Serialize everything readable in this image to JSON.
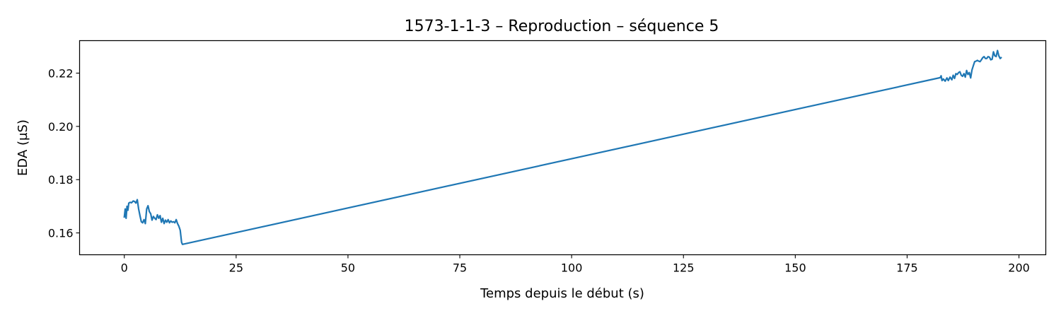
{
  "chart_data": {
    "type": "line",
    "title": "1573-1-1-3 – Reproduction – séquence 5",
    "xlabel": "Temps depuis le début (s)",
    "ylabel": "EDA (µS)",
    "xlim": [
      -10,
      206
    ],
    "ylim": [
      0.1518,
      0.2322
    ],
    "xticks": [
      {
        "value": 0,
        "label": "0"
      },
      {
        "value": 25,
        "label": "25"
      },
      {
        "value": 50,
        "label": "50"
      },
      {
        "value": 75,
        "label": "75"
      },
      {
        "value": 100,
        "label": "100"
      },
      {
        "value": 125,
        "label": "125"
      },
      {
        "value": 150,
        "label": "150"
      },
      {
        "value": 175,
        "label": "175"
      },
      {
        "value": 200,
        "label": "200"
      }
    ],
    "yticks": [
      {
        "value": 0.16,
        "label": "0.16"
      },
      {
        "value": 0.18,
        "label": "0.18"
      },
      {
        "value": 0.2,
        "label": "0.20"
      },
      {
        "value": 0.22,
        "label": "0.22"
      }
    ],
    "grid": false,
    "legend": false,
    "series": [
      {
        "color": "#1f77b4",
        "x": [
          0.0,
          0.2,
          0.4,
          0.6,
          0.8,
          1.0,
          1.3,
          1.6,
          2.0,
          2.3,
          2.6,
          2.9,
          3.2,
          3.5,
          3.8,
          4.1,
          4.4,
          4.7,
          5.0,
          5.3,
          5.6,
          5.9,
          6.2,
          6.5,
          6.8,
          7.1,
          7.4,
          7.7,
          8.0,
          8.3,
          8.6,
          8.9,
          9.2,
          9.5,
          9.8,
          10.1,
          10.4,
          10.7,
          11.0,
          11.3,
          11.6,
          11.9,
          12.2,
          12.5,
          12.8,
          13.0,
          182.4,
          182.6,
          182.8,
          183.1,
          183.5,
          183.9,
          184.2,
          184.6,
          185.0,
          185.3,
          185.6,
          185.9,
          186.2,
          186.5,
          186.8,
          187.1,
          187.4,
          187.7,
          188.0,
          188.3,
          188.6,
          188.9,
          189.2,
          189.5,
          189.8,
          190.1,
          190.4,
          190.7,
          191.0,
          191.3,
          191.6,
          191.9,
          192.2,
          192.5,
          192.8,
          193.1,
          193.4,
          193.7,
          194.0,
          194.3,
          194.6,
          194.9,
          195.2,
          195.5,
          195.8,
          196.0
        ],
        "y": [
          0.166,
          0.169,
          0.1655,
          0.17,
          0.1685,
          0.1712,
          0.1715,
          0.1713,
          0.172,
          0.1718,
          0.1712,
          0.1725,
          0.169,
          0.1665,
          0.1642,
          0.1638,
          0.165,
          0.1635,
          0.169,
          0.1702,
          0.168,
          0.1672,
          0.1648,
          0.1662,
          0.1655,
          0.165,
          0.1668,
          0.1655,
          0.1665,
          0.164,
          0.1655,
          0.1635,
          0.1648,
          0.164,
          0.165,
          0.1638,
          0.1645,
          0.164,
          0.1642,
          0.1638,
          0.165,
          0.1635,
          0.1625,
          0.161,
          0.1565,
          0.1557,
          0.2183,
          0.219,
          0.2172,
          0.2178,
          0.217,
          0.2182,
          0.2172,
          0.2185,
          0.2175,
          0.2192,
          0.218,
          0.2198,
          0.2195,
          0.2202,
          0.2205,
          0.2192,
          0.2188,
          0.2198,
          0.2185,
          0.221,
          0.2195,
          0.2202,
          0.2182,
          0.2212,
          0.2228,
          0.2243,
          0.2245,
          0.2248,
          0.2245,
          0.2243,
          0.225,
          0.2258,
          0.2262,
          0.2255,
          0.2255,
          0.2262,
          0.226,
          0.225,
          0.2252,
          0.228,
          0.2265,
          0.2262,
          0.2285,
          0.2265,
          0.2255,
          0.2258
        ]
      }
    ]
  }
}
